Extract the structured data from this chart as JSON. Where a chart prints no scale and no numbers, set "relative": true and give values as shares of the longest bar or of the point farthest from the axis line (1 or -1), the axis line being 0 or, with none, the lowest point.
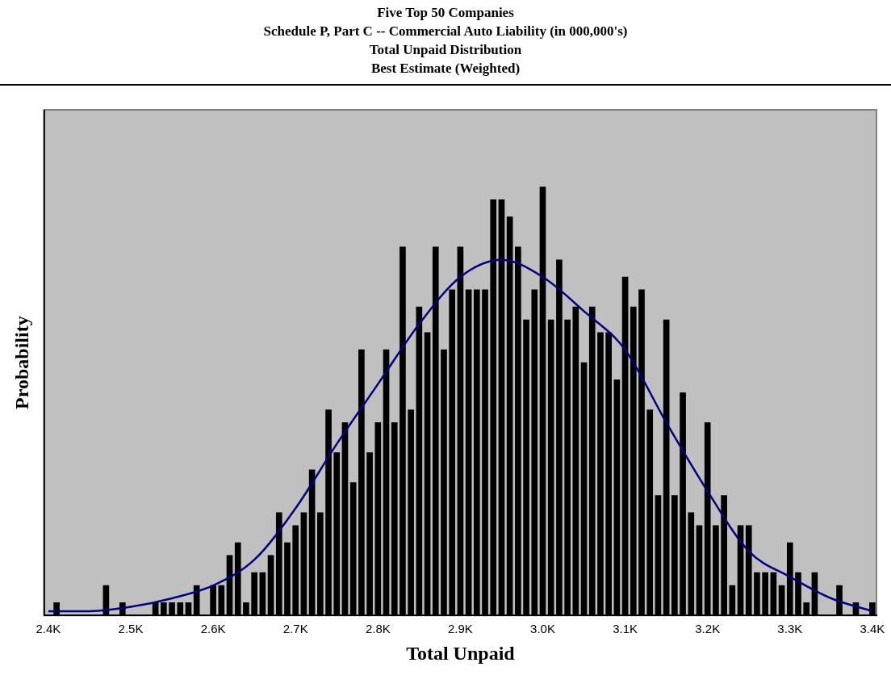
{
  "chart_data": {
    "type": "histogram",
    "title": "Five Top 50 Companies",
    "subtitle": "Schedule P, Part C -- Commercial Auto Liability (in 000,000's)\nTotal Unpaid Distribution\nBest Estimate (Weighted)",
    "xlabel": "Total Unpaid",
    "ylabel": "Probability",
    "relative": true,
    "marker": "none",
    "bins": [
      2395,
      2405,
      2415,
      2425,
      2435,
      2445,
      2455,
      2465,
      2475,
      2485,
      2495,
      2505,
      2515,
      2525,
      2535,
      2545,
      2555,
      2565,
      2575,
      2585,
      2595,
      2605,
      2615,
      2625,
      2635,
      2645,
      2655,
      2665,
      2675,
      2685,
      2695,
      2705,
      2715,
      2725,
      2735,
      2745,
      2755,
      2765,
      2775,
      2785,
      2795,
      2805,
      2815,
      2825,
      2835,
      2845,
      2855,
      2865,
      2875,
      2885,
      2895,
      2905,
      2915,
      2925,
      2935,
      2945,
      2955,
      2965,
      2975,
      2985,
      2995,
      3005,
      3015,
      3025,
      3035,
      3045,
      3055,
      3065,
      3075,
      3085,
      3095,
      3105,
      3115,
      3125,
      3135,
      3145,
      3155,
      3165,
      3175,
      3185,
      3195,
      3205,
      3215,
      3225,
      3235,
      3245,
      3255,
      3265,
      3275,
      3285,
      3295,
      3305,
      3315,
      3325,
      3335,
      3345,
      3355,
      3365,
      3375,
      3385,
      3395,
      3405
    ],
    "xlim": [
      2395,
      3405
    ],
    "xticks": [
      {
        "value": 2400,
        "label": "2.4K"
      },
      {
        "value": 2500,
        "label": "2.5K"
      },
      {
        "value": 2600,
        "label": "2.6K"
      },
      {
        "value": 2700,
        "label": "2.7K"
      },
      {
        "value": 2800,
        "label": "2.8K"
      },
      {
        "value": 2900,
        "label": "2.9K"
      },
      {
        "value": 3000,
        "label": "3.0K"
      },
      {
        "value": 3100,
        "label": "3.1K"
      },
      {
        "value": 3200,
        "label": "3.2K"
      },
      {
        "value": 3300,
        "label": "3.3K"
      },
      {
        "value": 3400,
        "label": "3.4K"
      }
    ],
    "series": [
      {
        "color": "#000000",
        "values": [
          0,
          0.03,
          0,
          0,
          0,
          0,
          0,
          0.07,
          0,
          0.03,
          0,
          0,
          0,
          0.03,
          0.03,
          0.03,
          0.03,
          0.03,
          0.07,
          0,
          0.07,
          0.07,
          0.14,
          0.17,
          0.03,
          0.1,
          0.1,
          0.14,
          0.24,
          0.17,
          0.21,
          0.24,
          0.34,
          0.24,
          0.48,
          0.38,
          0.45,
          0.31,
          0.62,
          0.38,
          0.45,
          0.62,
          0.45,
          0.86,
          0.48,
          0.72,
          0.66,
          0.86,
          0.62,
          0.76,
          0.86,
          0.76,
          0.76,
          0.76,
          0.97,
          0.97,
          0.93,
          0.86,
          0.69,
          0.76,
          1,
          0.69,
          0.83,
          0.69,
          0.72,
          0.59,
          0.72,
          0.66,
          0.66,
          0.55,
          0.79,
          0.72,
          0.76,
          0.48,
          0.28,
          0.69,
          0.28,
          0.52,
          0.24,
          0.21,
          0.45,
          0.21,
          0.28,
          0.07,
          0.21,
          0.21,
          0.1,
          0.1,
          0.1,
          0.07,
          0.17,
          0.1,
          0.03,
          0.1,
          0,
          0,
          0.07,
          0,
          0.03,
          0,
          0.03
        ]
      },
      {
        "type": "line",
        "color": "#000080",
        "x": [
          2400,
          2450,
          2500,
          2550,
          2600,
          2650,
          2700,
          2750,
          2800,
          2850,
          2900,
          2950,
          3000,
          3050,
          3100,
          3150,
          3200,
          3250,
          3300,
          3350,
          3400
        ],
        "values": [
          0.01,
          0.01,
          0.02,
          0.04,
          0.07,
          0.13,
          0.25,
          0.4,
          0.54,
          0.68,
          0.79,
          0.83,
          0.79,
          0.71,
          0.62,
          0.45,
          0.29,
          0.15,
          0.09,
          0.04,
          0.01
        ]
      }
    ]
  }
}
